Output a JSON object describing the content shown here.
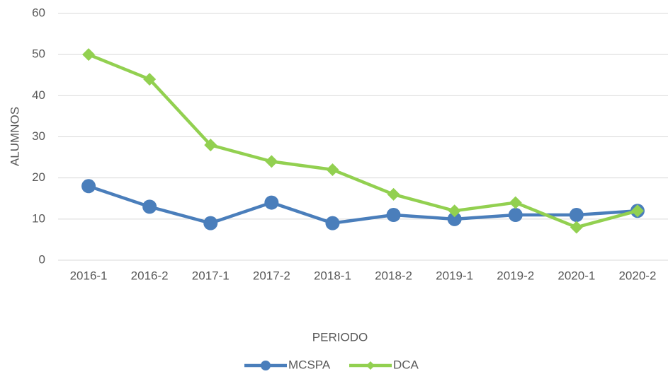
{
  "chart_data": {
    "type": "line",
    "categories": [
      "2016-1",
      "2016-2",
      "2017-1",
      "2017-2",
      "2018-1",
      "2018-2",
      "2019-1",
      "2019-2",
      "2020-1",
      "2020-2"
    ],
    "series": [
      {
        "name": "MCSPA",
        "color": "#4a7ebb",
        "marker": "circle",
        "values": [
          18,
          13,
          9,
          14,
          9,
          11,
          10,
          11,
          11,
          12
        ]
      },
      {
        "name": "DCA",
        "color": "#92d050",
        "marker": "diamond",
        "values": [
          50,
          44,
          28,
          24,
          22,
          16,
          12,
          14,
          8,
          12
        ]
      }
    ],
    "x_label": "PERIODO",
    "y_label": "ALUMNOS",
    "ylim": [
      0,
      60
    ],
    "yticks": [
      0,
      10,
      20,
      30,
      40,
      50,
      60
    ],
    "grid": true,
    "legend": "bottom"
  }
}
